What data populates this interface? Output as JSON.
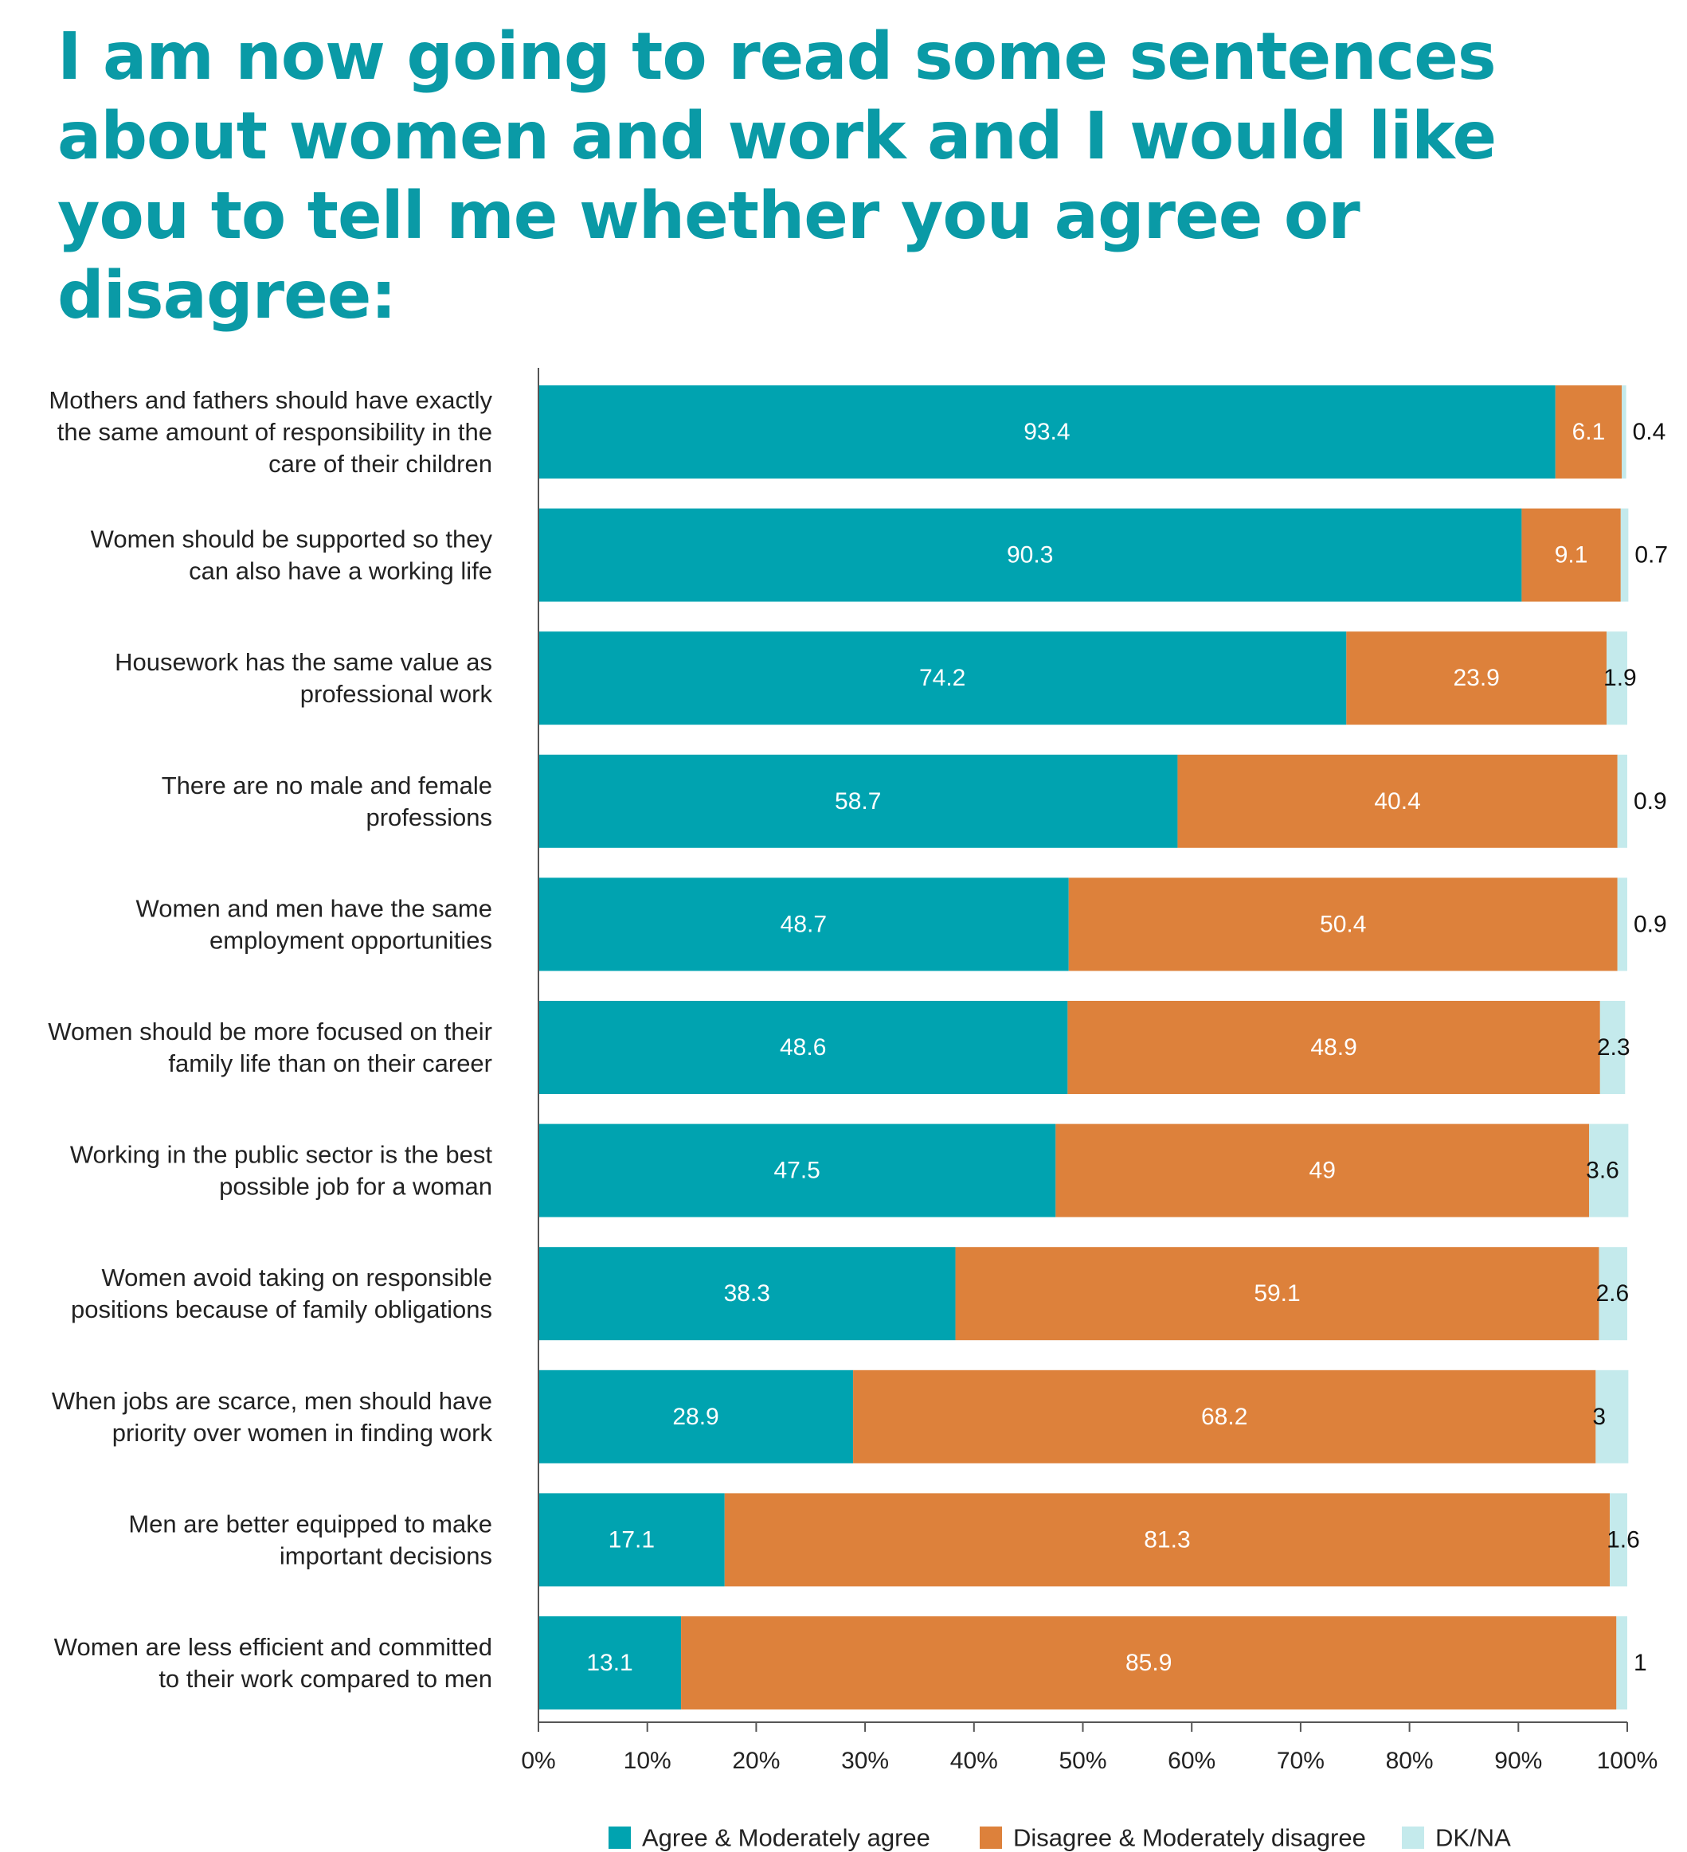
{
  "chart_data": {
    "type": "bar",
    "orientation": "horizontal",
    "stacked": true,
    "title": "I am now going to read some sentences about women and work and I would like you to tell me whether you agree or disagree:",
    "categories": [
      [
        "Mothers and fathers should have exactly",
        "the same amount of responsibility in the",
        "care of their children"
      ],
      [
        "Women should be supported so they",
        "can also have a working life"
      ],
      [
        "Housework has the same value as",
        "professional work"
      ],
      [
        "There are no male and female",
        "professions"
      ],
      [
        "Women and men have the same",
        "employment opportunities"
      ],
      [
        "Women should be more focused on their",
        "family life than on their career"
      ],
      [
        "Working in the public sector is the best",
        "possible job for a woman"
      ],
      [
        "Women avoid taking on responsible",
        "positions because of family obligations"
      ],
      [
        "When jobs are scarce, men should have",
        "priority over women in finding work"
      ],
      [
        "Men are better equipped to make",
        "important decisions"
      ],
      [
        "Women are less efficient and committed",
        "to their work compared to men"
      ]
    ],
    "series": [
      {
        "name": "Agree & Moderately agree",
        "color": "#00a3b0",
        "values": [
          93.4,
          90.3,
          74.2,
          58.7,
          48.7,
          48.6,
          47.5,
          38.3,
          28.9,
          17.1,
          13.1
        ],
        "labels": [
          "93.4",
          "90.3",
          "74.2",
          "58.7",
          "48.7",
          "48.6",
          "47.5",
          "38.3",
          "28.9",
          "17.1",
          "13.1"
        ]
      },
      {
        "name": "Disagree & Moderately disagree",
        "color": "#dd813b",
        "values": [
          6.1,
          9.1,
          23.9,
          40.4,
          50.4,
          48.9,
          49,
          59.1,
          68.2,
          81.3,
          85.9
        ],
        "labels": [
          "6.1",
          "9.1",
          "23.9",
          "40.4",
          "50.4",
          "48.9",
          "49",
          "59.1",
          "68.2",
          "81.3",
          "85.9"
        ]
      },
      {
        "name": "DK/NA",
        "color": "#c4eaec",
        "values": [
          0.4,
          0.7,
          1.9,
          0.9,
          0.9,
          2.3,
          3.6,
          2.6,
          3,
          1.6,
          1
        ],
        "labels": [
          "0.4",
          "0.7",
          "1.9",
          "0.9",
          "0.9",
          "2.3",
          "3.6",
          "2.6",
          "3",
          "1.6",
          "1"
        ]
      }
    ],
    "xlim": [
      0,
      100
    ],
    "x_ticks": [
      "0%",
      "10%",
      "20%",
      "30%",
      "40%",
      "50%",
      "60%",
      "70%",
      "80%",
      "90%",
      "100%"
    ],
    "legend_position": "bottom",
    "grid": false
  }
}
